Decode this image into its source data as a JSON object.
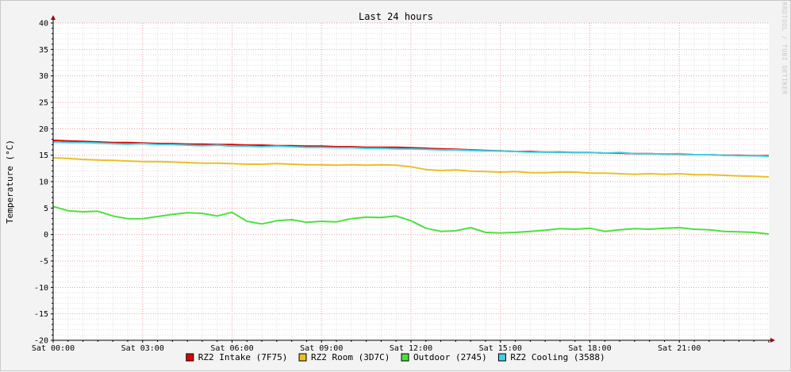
{
  "chart_data": {
    "type": "line",
    "title": "Last 24 hours",
    "ylabel": "Temperature (°C)",
    "watermark": "RRDTOOL / TOBI OETIKER",
    "ylim": [
      -20,
      40
    ],
    "yticks": [
      40,
      35,
      30,
      25,
      20,
      15,
      10,
      5,
      0,
      -5,
      -10,
      -15,
      -20
    ],
    "xlim": [
      0,
      24
    ],
    "xtick_labels": [
      {
        "x": 0,
        "label": "Sat 00:00"
      },
      {
        "x": 3,
        "label": "Sat 03:00"
      },
      {
        "x": 6,
        "label": "Sat 06:00"
      },
      {
        "x": 9,
        "label": "Sat 09:00"
      },
      {
        "x": 12,
        "label": "Sat 12:00"
      },
      {
        "x": 15,
        "label": "Sat 15:00"
      },
      {
        "x": 18,
        "label": "Sat 18:00"
      },
      {
        "x": 21,
        "label": "Sat 21:00"
      }
    ],
    "grid": true,
    "legend_placement": "bottom",
    "x": [
      0,
      0.5,
      1,
      1.5,
      2,
      2.5,
      3,
      3.5,
      4,
      4.5,
      5,
      5.5,
      6,
      6.5,
      7,
      7.5,
      8,
      8.5,
      9,
      9.5,
      10,
      10.5,
      11,
      11.5,
      12,
      12.5,
      13,
      13.5,
      14,
      14.5,
      15,
      15.5,
      16,
      16.5,
      17,
      17.5,
      18,
      18.5,
      19,
      19.5,
      20,
      20.5,
      21,
      21.5,
      22,
      22.5,
      23,
      23.5,
      24
    ],
    "series": [
      {
        "name": "RZ2 Intake (7F75)",
        "color": "#e00000",
        "values": [
          17.8,
          17.7,
          17.6,
          17.5,
          17.4,
          17.4,
          17.3,
          17.2,
          17.2,
          17.1,
          17.1,
          17.0,
          17.0,
          16.9,
          16.9,
          16.8,
          16.8,
          16.7,
          16.7,
          16.6,
          16.6,
          16.5,
          16.5,
          16.5,
          16.4,
          16.3,
          16.2,
          16.1,
          16.0,
          15.9,
          15.8,
          15.7,
          15.7,
          15.6,
          15.6,
          15.5,
          15.5,
          15.4,
          15.4,
          15.3,
          15.3,
          15.2,
          15.2,
          15.1,
          15.1,
          15.0,
          15.0,
          14.9,
          14.9
        ]
      },
      {
        "name": "RZ2 Room (3D7C)",
        "color": "#e8c028",
        "values": [
          14.5,
          14.4,
          14.2,
          14.1,
          14.0,
          13.9,
          13.8,
          13.8,
          13.7,
          13.6,
          13.5,
          13.5,
          13.4,
          13.3,
          13.3,
          13.4,
          13.3,
          13.2,
          13.2,
          13.1,
          13.2,
          13.1,
          13.2,
          13.1,
          12.8,
          12.3,
          12.1,
          12.2,
          12.0,
          11.9,
          11.8,
          11.9,
          11.7,
          11.7,
          11.8,
          11.8,
          11.6,
          11.6,
          11.5,
          11.4,
          11.5,
          11.4,
          11.5,
          11.3,
          11.3,
          11.2,
          11.1,
          11.0,
          10.9
        ]
      },
      {
        "name": "Outdoor (2745)",
        "color": "#4de040",
        "values": [
          5.3,
          4.5,
          4.3,
          4.4,
          3.5,
          3.0,
          3.0,
          3.4,
          3.8,
          4.1,
          4.0,
          3.5,
          4.2,
          2.5,
          2.0,
          2.6,
          2.8,
          2.3,
          2.5,
          2.4,
          3.0,
          3.3,
          3.2,
          3.5,
          2.6,
          1.2,
          0.6,
          0.7,
          1.3,
          0.4,
          0.3,
          0.4,
          0.6,
          0.8,
          1.1,
          1.0,
          1.2,
          0.6,
          0.9,
          1.1,
          1.0,
          1.2,
          1.3,
          1.0,
          0.9,
          0.6,
          0.5,
          0.4,
          0.1
        ]
      },
      {
        "name": "RZ2 Cooling (3588)",
        "color": "#40d0e0",
        "values": [
          17.5,
          17.4,
          17.4,
          17.3,
          17.2,
          17.1,
          17.2,
          17.0,
          17.0,
          16.9,
          16.8,
          16.9,
          16.7,
          16.7,
          16.6,
          16.7,
          16.6,
          16.5,
          16.5,
          16.4,
          16.4,
          16.3,
          16.3,
          16.2,
          16.2,
          16.1,
          16.0,
          16.0,
          15.9,
          15.8,
          15.8,
          15.7,
          15.6,
          15.6,
          15.5,
          15.5,
          15.5,
          15.4,
          15.5,
          15.3,
          15.3,
          15.2,
          15.3,
          15.1,
          15.1,
          15.0,
          14.9,
          14.9,
          14.8
        ]
      }
    ]
  }
}
